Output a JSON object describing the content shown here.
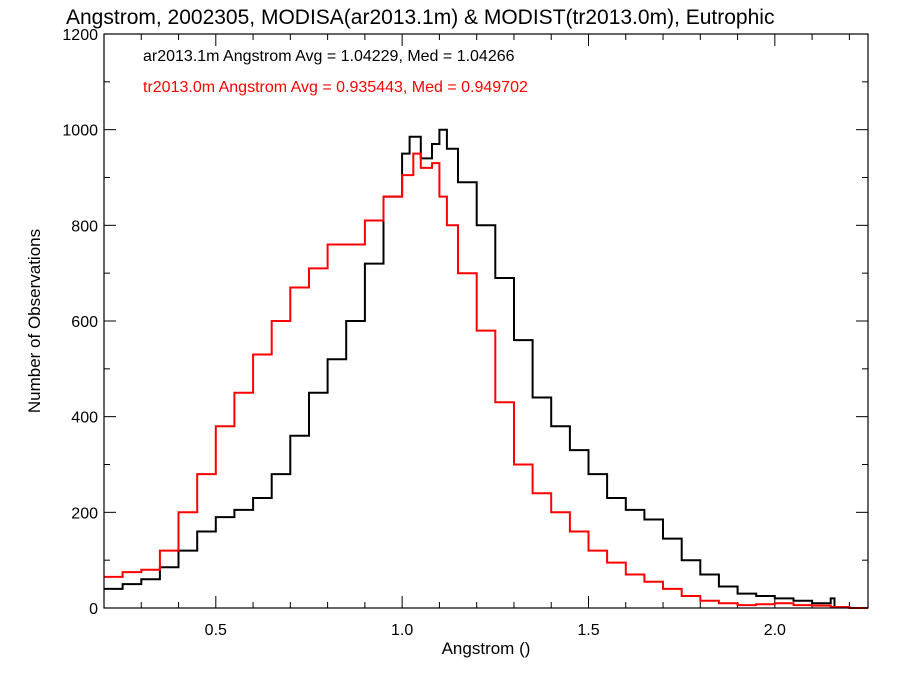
{
  "chart_data": {
    "type": "line",
    "title": "Angstrom, 2002305, MODISA(ar2013.1m) & MODIST(tr2013.0m), Eutrophic",
    "xlabel": "Angstrom ()",
    "ylabel": "Number of Observations",
    "xlim": [
      0.2,
      2.25
    ],
    "ylim": [
      0,
      1200
    ],
    "xticks": [
      0.5,
      1.0,
      1.5,
      2.0
    ],
    "xtick_labels": [
      "0.5",
      "1.0",
      "1.5",
      "2.0"
    ],
    "yticks": [
      0,
      200,
      400,
      600,
      800,
      1000,
      1200
    ],
    "ytick_labels": [
      "0",
      "200",
      "400",
      "600",
      "800",
      "1000",
      "1200"
    ],
    "grid": false,
    "legend_position": "top-left",
    "colors": {
      "axes": "#000000",
      "series_a": "#000000",
      "series_b": "#ff0000"
    },
    "series": [
      {
        "name": "ar2013.1m",
        "color": "#000000",
        "annotation": "ar2013.1m Angstrom Avg = 1.04229, Med = 1.04266",
        "x": [
          0.2,
          0.25,
          0.3,
          0.35,
          0.4,
          0.45,
          0.5,
          0.55,
          0.6,
          0.65,
          0.7,
          0.75,
          0.8,
          0.85,
          0.9,
          0.95,
          1.0,
          1.02,
          1.05,
          1.08,
          1.1,
          1.12,
          1.15,
          1.2,
          1.25,
          1.3,
          1.35,
          1.4,
          1.45,
          1.5,
          1.55,
          1.6,
          1.65,
          1.7,
          1.75,
          1.8,
          1.85,
          1.9,
          1.95,
          2.0,
          2.05,
          2.1,
          2.15,
          2.16
        ],
        "values": [
          40,
          50,
          60,
          85,
          120,
          160,
          190,
          205,
          230,
          280,
          360,
          450,
          520,
          600,
          720,
          860,
          950,
          985,
          940,
          970,
          1000,
          960,
          890,
          800,
          690,
          560,
          440,
          380,
          330,
          280,
          230,
          205,
          185,
          145,
          100,
          70,
          45,
          30,
          25,
          20,
          15,
          10,
          20,
          0
        ]
      },
      {
        "name": "tr2013.0m",
        "color": "#ff0000",
        "annotation": "tr2013.0m Angstrom Avg = 0.935443, Med = 0.949702",
        "x": [
          0.2,
          0.25,
          0.3,
          0.35,
          0.4,
          0.45,
          0.5,
          0.55,
          0.6,
          0.65,
          0.7,
          0.75,
          0.8,
          0.85,
          0.9,
          0.95,
          1.0,
          1.03,
          1.05,
          1.08,
          1.1,
          1.12,
          1.15,
          1.2,
          1.25,
          1.3,
          1.35,
          1.4,
          1.45,
          1.5,
          1.55,
          1.6,
          1.65,
          1.7,
          1.75,
          1.8,
          1.85,
          1.9,
          1.95,
          2.0,
          2.05,
          2.1,
          2.15,
          2.2,
          2.25
        ],
        "values": [
          65,
          75,
          80,
          120,
          200,
          280,
          380,
          450,
          530,
          600,
          670,
          710,
          760,
          760,
          810,
          860,
          905,
          950,
          920,
          930,
          860,
          800,
          700,
          580,
          430,
          300,
          240,
          200,
          160,
          120,
          95,
          70,
          55,
          40,
          25,
          15,
          10,
          6,
          8,
          10,
          6,
          5,
          2,
          0,
          0
        ]
      }
    ]
  }
}
